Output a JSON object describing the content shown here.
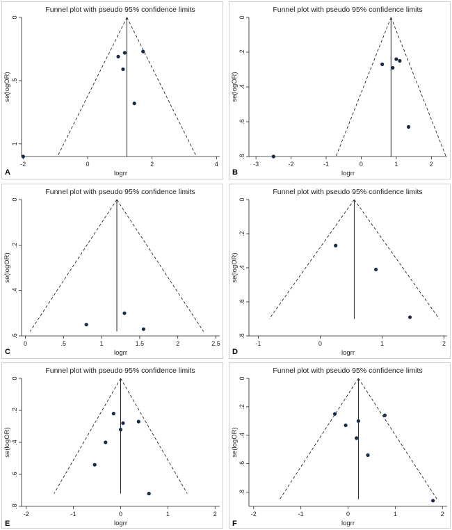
{
  "colors": {
    "background": "#ffffff",
    "panel_border": "#c9ccd0",
    "axis": "#222222",
    "funnel_line": "#222222",
    "point": "#1b2b47"
  },
  "chart_data": [
    {
      "panel": "A",
      "type": "scatter",
      "title": "Funnel plot with pseudo 95% confidence limits",
      "xlabel": "logrr",
      "ylabel": "se(logOR)",
      "xlim": [
        -2.05,
        4.1
      ],
      "ylim": [
        0,
        1.1
      ],
      "y_reversed": true,
      "xticks": [
        {
          "value": -2,
          "label": "-2"
        },
        {
          "value": 0,
          "label": "0"
        },
        {
          "value": 2,
          "label": "2"
        },
        {
          "value": 4,
          "label": "4"
        }
      ],
      "yticks": [
        {
          "value": 0,
          "label": "0"
        },
        {
          "value": 0.5,
          "label": ".5"
        },
        {
          "value": 1,
          "label": "1"
        }
      ],
      "pooled_estimate": 1.22,
      "funnel_max_se": 1.1,
      "points": [
        [
          1.72,
          0.27
        ],
        [
          1.15,
          0.28
        ],
        [
          0.95,
          0.31
        ],
        [
          1.1,
          0.41
        ],
        [
          1.45,
          0.68
        ],
        [
          -2.0,
          1.1
        ]
      ]
    },
    {
      "panel": "B",
      "type": "scatter",
      "title": "Funnel plot with pseudo 95% confidence limits",
      "xlabel": "logrr",
      "ylabel": "se(logOR)",
      "xlim": [
        -3.2,
        2.45
      ],
      "ylim": [
        0,
        0.8
      ],
      "y_reversed": true,
      "xticks": [
        {
          "value": -3,
          "label": "-3"
        },
        {
          "value": -2,
          "label": "-2"
        },
        {
          "value": -1,
          "label": "-1"
        },
        {
          "value": 0,
          "label": "0"
        },
        {
          "value": 1,
          "label": "1"
        },
        {
          "value": 2,
          "label": "2"
        }
      ],
      "yticks": [
        {
          "value": 0,
          "label": "0"
        },
        {
          "value": 0.2,
          "label": ".2"
        },
        {
          "value": 0.4,
          "label": ".4"
        },
        {
          "value": 0.6,
          "label": ".6"
        },
        {
          "value": 0.8,
          "label": ".8"
        }
      ],
      "pooled_estimate": 0.85,
      "funnel_max_se": 0.8,
      "points": [
        [
          0.6,
          0.27
        ],
        [
          0.9,
          0.29
        ],
        [
          1.0,
          0.24
        ],
        [
          1.1,
          0.25
        ],
        [
          1.35,
          0.63
        ],
        [
          -2.5,
          0.8
        ]
      ]
    },
    {
      "panel": "C",
      "type": "scatter",
      "title": "Funnel plot with pseudo 95% confidence limits",
      "xlabel": "logrr",
      "ylabel": "se(logOR)",
      "xlim": [
        -0.05,
        2.55
      ],
      "ylim": [
        0,
        0.6
      ],
      "y_reversed": true,
      "xticks": [
        {
          "value": 0,
          "label": "0"
        },
        {
          "value": 0.5,
          "label": ".5"
        },
        {
          "value": 1,
          "label": "1"
        },
        {
          "value": 1.5,
          "label": "1.5"
        },
        {
          "value": 2,
          "label": "2"
        },
        {
          "value": 2.5,
          "label": "2.5"
        }
      ],
      "yticks": [
        {
          "value": 0,
          "label": "0"
        },
        {
          "value": 0.2,
          "label": ".2"
        },
        {
          "value": 0.4,
          "label": ".4"
        },
        {
          "value": 0.6,
          "label": ".6"
        }
      ],
      "pooled_estimate": 1.2,
      "funnel_max_se": 0.58,
      "points": [
        [
          0.8,
          0.55
        ],
        [
          1.3,
          0.5
        ],
        [
          1.55,
          0.57
        ]
      ]
    },
    {
      "panel": "D",
      "type": "scatter",
      "title": "Funnel plot with pseudo 95% confidence limits",
      "xlabel": "logrr",
      "ylabel": "se(logOR)",
      "xlim": [
        -1.15,
        2.05
      ],
      "ylim": [
        0,
        0.8
      ],
      "y_reversed": true,
      "xticks": [
        {
          "value": -1,
          "label": "-1"
        },
        {
          "value": 0,
          "label": "0"
        },
        {
          "value": 1,
          "label": "1"
        },
        {
          "value": 2,
          "label": "2"
        }
      ],
      "yticks": [
        {
          "value": 0,
          "label": "0"
        },
        {
          "value": 0.2,
          "label": ".2"
        },
        {
          "value": 0.4,
          "label": ".4"
        },
        {
          "value": 0.6,
          "label": ".6"
        },
        {
          "value": 0.8,
          "label": ".8"
        }
      ],
      "pooled_estimate": 0.55,
      "funnel_max_se": 0.7,
      "points": [
        [
          0.25,
          0.27
        ],
        [
          0.9,
          0.41
        ],
        [
          1.45,
          0.69
        ]
      ]
    },
    {
      "panel": "E",
      "type": "scatter",
      "title": "Funnel plot with pseudo 95% confidence limits",
      "xlabel": "logrr",
      "ylabel": "se(logOR)",
      "xlim": [
        -2.1,
        2.1
      ],
      "ylim": [
        0,
        0.8
      ],
      "y_reversed": true,
      "xticks": [
        {
          "value": -2,
          "label": "-2"
        },
        {
          "value": -1,
          "label": "-1"
        },
        {
          "value": 0,
          "label": "0"
        },
        {
          "value": 1,
          "label": "1"
        },
        {
          "value": 2,
          "label": "2"
        }
      ],
      "yticks": [
        {
          "value": 0,
          "label": "0"
        },
        {
          "value": 0.2,
          "label": ".2"
        },
        {
          "value": 0.4,
          "label": ".4"
        },
        {
          "value": 0.6,
          "label": ".6"
        },
        {
          "value": 0.8,
          "label": ".8"
        }
      ],
      "pooled_estimate": 0.0,
      "funnel_max_se": 0.72,
      "points": [
        [
          -0.15,
          0.22
        ],
        [
          0.05,
          0.28
        ],
        [
          0.38,
          0.27
        ],
        [
          0.0,
          0.32
        ],
        [
          -0.32,
          0.4
        ],
        [
          -0.55,
          0.54
        ],
        [
          0.6,
          0.72
        ]
      ]
    },
    {
      "panel": "F",
      "type": "scatter",
      "title": "Funnel plot with pseudo 95% confidence limits",
      "xlabel": "logrr",
      "ylabel": "se(logOR)",
      "xlim": [
        -2.1,
        2.1
      ],
      "ylim": [
        0,
        0.9
      ],
      "y_reversed": true,
      "xticks": [
        {
          "value": -2,
          "label": "-2"
        },
        {
          "value": -1,
          "label": "-1"
        },
        {
          "value": 0,
          "label": "0"
        },
        {
          "value": 1,
          "label": "1"
        },
        {
          "value": 2,
          "label": "2"
        }
      ],
      "yticks": [
        {
          "value": 0,
          "label": "0"
        },
        {
          "value": 0.2,
          "label": ".2"
        },
        {
          "value": 0.4,
          "label": ".4"
        },
        {
          "value": 0.6,
          "label": ".6"
        },
        {
          "value": 0.8,
          "label": ".8"
        }
      ],
      "pooled_estimate": 0.22,
      "funnel_max_se": 0.85,
      "points": [
        [
          -0.28,
          0.25
        ],
        [
          -0.05,
          0.33
        ],
        [
          0.22,
          0.3
        ],
        [
          0.18,
          0.42
        ],
        [
          0.78,
          0.26
        ],
        [
          0.42,
          0.54
        ],
        [
          1.8,
          0.86
        ]
      ]
    }
  ]
}
